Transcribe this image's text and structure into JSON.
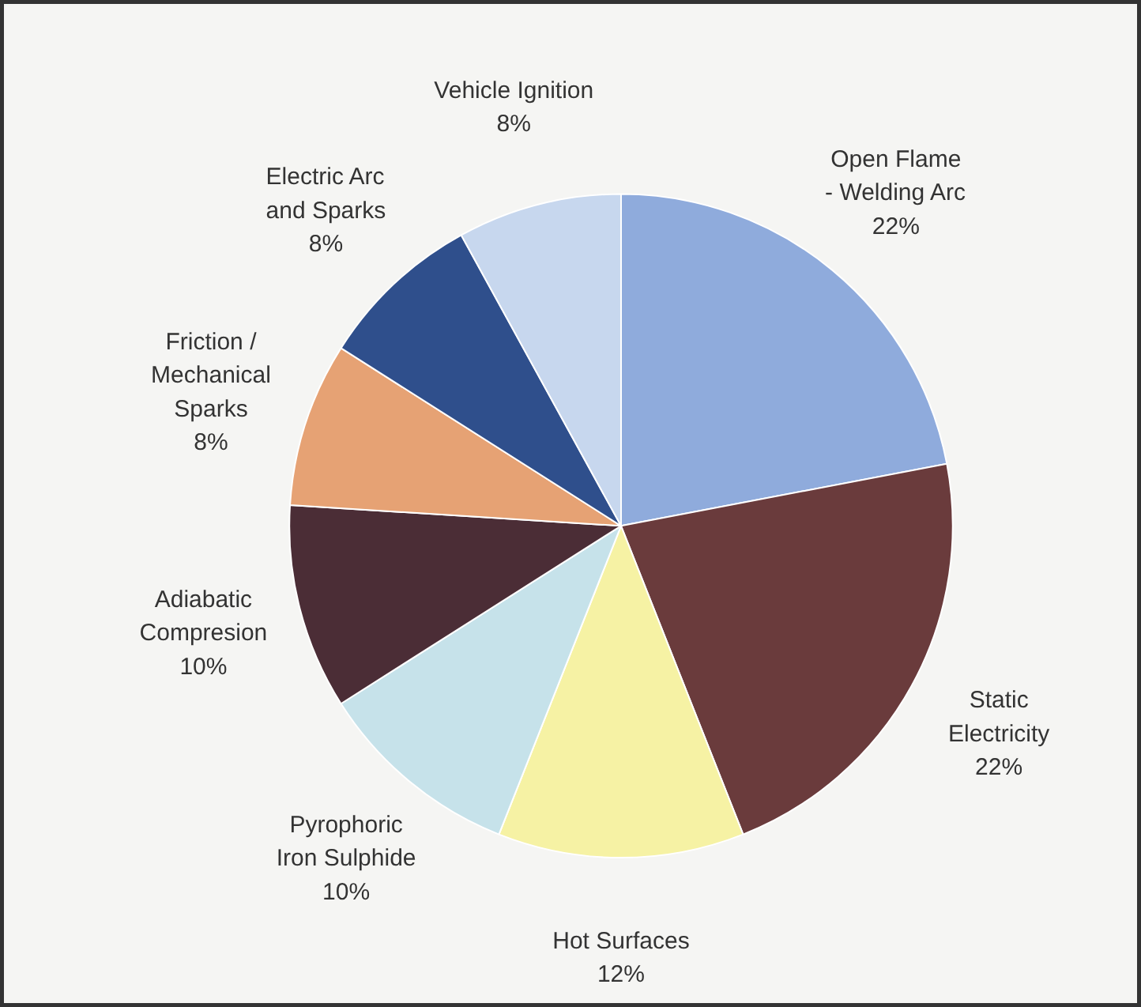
{
  "chart_data": {
    "type": "pie",
    "categories": [
      "Open Flame\n- Welding Arc",
      "Static\nElectricity",
      "Hot Surfaces",
      "Pyrophoric\nIron Sulphide",
      "Adiabatic\nCompresion",
      "Friction /\nMechanical\nSparks",
      "Electric Arc\nand Sparks",
      "Vehicle Ignition"
    ],
    "values": [
      22,
      22,
      12,
      10,
      10,
      8,
      8,
      8
    ],
    "colors": [
      "#8fabdc",
      "#6a3b3c",
      "#f6f2a4",
      "#c6e2ea",
      "#4b2d36",
      "#e6a274",
      "#2f4f8c",
      "#c7d7ee"
    ],
    "value_labels": [
      "22%",
      "22%",
      "12%",
      "10%",
      "10%",
      "8%",
      "8%",
      "8%"
    ]
  }
}
